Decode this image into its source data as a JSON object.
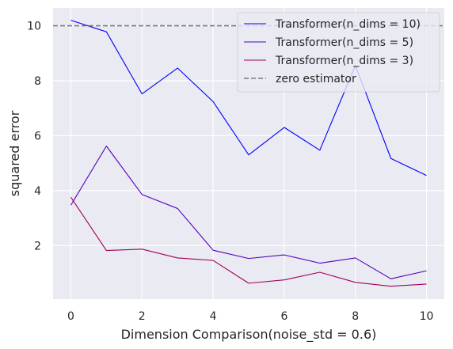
{
  "chart_data": {
    "type": "line",
    "xlabel": "Dimension Comparison(noise_std = 0.6)",
    "ylabel": "squared error",
    "x": [
      0,
      1,
      2,
      3,
      4,
      5,
      6,
      7,
      8,
      9,
      10
    ],
    "xlim": [
      -0.5,
      10.5
    ],
    "ylim": [
      0.05,
      10.65
    ],
    "xticks": [
      0,
      2,
      4,
      6,
      8,
      10
    ],
    "yticks": [
      2,
      4,
      6,
      8,
      10
    ],
    "grid": true,
    "background": "#eaeaf2",
    "legend_position": "top-right",
    "series": [
      {
        "name": "Transformer(n_dims = 10)",
        "color": "#0000ff",
        "style": "solid",
        "values": [
          10.2,
          9.78,
          7.52,
          8.46,
          7.24,
          5.3,
          6.3,
          5.47,
          8.55,
          5.17,
          4.55
        ]
      },
      {
        "name": "Transformer(n_dims = 5)",
        "color": "#5500bb",
        "style": "solid",
        "values": [
          3.47,
          5.62,
          3.86,
          3.35,
          1.83,
          1.53,
          1.66,
          1.36,
          1.55,
          0.79,
          1.08
        ]
      },
      {
        "name": "Transformer(n_dims = 3)",
        "color": "#a0005a",
        "style": "solid",
        "values": [
          3.76,
          1.82,
          1.87,
          1.55,
          1.46,
          0.63,
          0.75,
          1.03,
          0.66,
          0.52,
          0.6
        ]
      },
      {
        "name": "zero estimator",
        "color": "#7a7a7a",
        "style": "dashed",
        "y": 10.0
      }
    ]
  }
}
